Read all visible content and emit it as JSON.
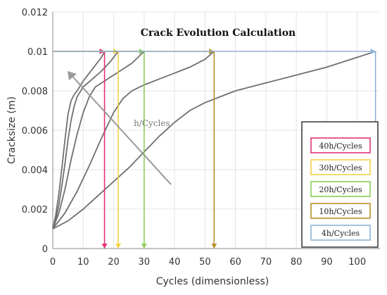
{
  "chart_data": {
    "type": "line",
    "title": "Crack Evolution Calculation",
    "xlabel": "Cycles (dimensionless)",
    "ylabel": "Cracksize (m)",
    "xlim": [
      0,
      107
    ],
    "ylim": [
      0,
      0.012
    ],
    "x_ticks": [
      "0",
      "10",
      "20",
      "30",
      "40",
      "50",
      "60",
      "70",
      "80",
      "90",
      "100"
    ],
    "y_ticks": [
      "0",
      "0.002",
      "0.004",
      "0.006",
      "0.008",
      "0.01",
      "0.012"
    ],
    "grid": true,
    "annotation": "h/Cycles",
    "critical_crack_size": 0.01,
    "legend_position": "right",
    "series": [
      {
        "name": "40h/Cycles",
        "color": "#e0337a",
        "end_cycles": 17,
        "points": [
          [
            0,
            0.001
          ],
          [
            1,
            0.0017
          ],
          [
            2,
            0.0028
          ],
          [
            3,
            0.0041
          ],
          [
            4,
            0.0055
          ],
          [
            5,
            0.0068
          ],
          [
            6,
            0.0075
          ],
          [
            7,
            0.0078
          ],
          [
            8,
            0.008
          ],
          [
            10,
            0.0085
          ],
          [
            12,
            0.0089
          ],
          [
            14,
            0.0093
          ],
          [
            16,
            0.0097
          ],
          [
            17,
            0.01
          ]
        ]
      },
      {
        "name": "30h/Cycles",
        "color": "#f2d04a",
        "end_cycles": 21.5,
        "points": [
          [
            0,
            0.001
          ],
          [
            1,
            0.0015
          ],
          [
            2,
            0.0022
          ],
          [
            3,
            0.0032
          ],
          [
            4,
            0.0043
          ],
          [
            5,
            0.0055
          ],
          [
            6,
            0.0065
          ],
          [
            7,
            0.0072
          ],
          [
            8,
            0.0077
          ],
          [
            10,
            0.0082
          ],
          [
            13,
            0.0086
          ],
          [
            16,
            0.009
          ],
          [
            19,
            0.0095
          ],
          [
            21.5,
            0.01
          ]
        ]
      },
      {
        "name": "20h/Cycles",
        "color": "#8ccc5a",
        "end_cycles": 30,
        "points": [
          [
            0,
            0.001
          ],
          [
            2,
            0.0018
          ],
          [
            4,
            0.003
          ],
          [
            6,
            0.0045
          ],
          [
            8,
            0.0058
          ],
          [
            10,
            0.0069
          ],
          [
            12,
            0.0077
          ],
          [
            14,
            0.0082
          ],
          [
            17,
            0.0085
          ],
          [
            20,
            0.0088
          ],
          [
            23,
            0.0091
          ],
          [
            26,
            0.0094
          ],
          [
            28,
            0.0097
          ],
          [
            30,
            0.01
          ]
        ]
      },
      {
        "name": "10h/Cycles",
        "color": "#b5922c",
        "end_cycles": 53,
        "points": [
          [
            0,
            0.001
          ],
          [
            4,
            0.0018
          ],
          [
            8,
            0.0029
          ],
          [
            12,
            0.0042
          ],
          [
            16,
            0.0056
          ],
          [
            20,
            0.0069
          ],
          [
            23,
            0.0076
          ],
          [
            26,
            0.008
          ],
          [
            30,
            0.0083
          ],
          [
            35,
            0.0086
          ],
          [
            40,
            0.0089
          ],
          [
            45,
            0.0092
          ],
          [
            50,
            0.0096
          ],
          [
            53,
            0.01
          ]
        ]
      },
      {
        "name": "4h/Cycles",
        "color": "#90b2d8",
        "end_cycles": 106,
        "points": [
          [
            0,
            0.001
          ],
          [
            5,
            0.0014
          ],
          [
            10,
            0.002
          ],
          [
            15,
            0.0027
          ],
          [
            20,
            0.0034
          ],
          [
            25,
            0.0041
          ],
          [
            30,
            0.0049
          ],
          [
            35,
            0.0057
          ],
          [
            40,
            0.0064
          ],
          [
            45,
            0.007
          ],
          [
            50,
            0.0074
          ],
          [
            55,
            0.0077
          ],
          [
            60,
            0.008
          ],
          [
            70,
            0.0084
          ],
          [
            80,
            0.0088
          ],
          [
            90,
            0.0092
          ],
          [
            100,
            0.0097
          ],
          [
            106,
            0.01
          ]
        ]
      }
    ]
  }
}
